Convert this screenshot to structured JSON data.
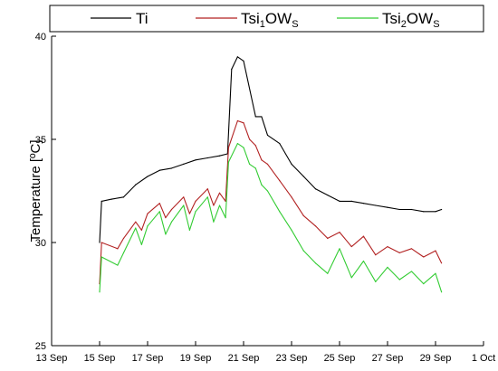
{
  "chart_data": {
    "type": "line",
    "title": "",
    "xlabel": "",
    "ylabel": "Temperature [ºC]",
    "x_unit": "date",
    "xlim": [
      "2021-09-13",
      "2021-10-01"
    ],
    "ylim": [
      25,
      40
    ],
    "x_ticks": [
      "13 Sep",
      "15 Sep",
      "17 Sep",
      "19 Sep",
      "21 Sep",
      "23 Sep",
      "25 Sep",
      "27 Sep",
      "29 Sep",
      "1 Oct"
    ],
    "y_ticks": [
      25,
      30,
      35,
      40
    ],
    "grid": false,
    "legend_position": "top",
    "legend": [
      {
        "main": "Ti",
        "sub1": "",
        "mid": "",
        "sub2": ""
      },
      {
        "main": "Tsi",
        "sub1": "1",
        "mid": "OW",
        "sub2": "S"
      },
      {
        "main": "Tsi",
        "sub1": "2",
        "mid": "OW",
        "sub2": "S"
      }
    ],
    "series": [
      {
        "name": "Ti",
        "color": "#000000",
        "x": [
          "2021-09-15 00:00",
          "2021-09-15 02:00",
          "2021-09-15 12:00",
          "2021-09-16 00:00",
          "2021-09-16 12:00",
          "2021-09-17 00:00",
          "2021-09-17 12:00",
          "2021-09-18 00:00",
          "2021-09-18 12:00",
          "2021-09-19 00:00",
          "2021-09-19 12:00",
          "2021-09-20 00:00",
          "2021-09-20 08:00",
          "2021-09-20 12:00",
          "2021-09-20 18:00",
          "2021-09-21 00:00",
          "2021-09-21 12:00",
          "2021-09-21 18:00",
          "2021-09-22 00:00",
          "2021-09-22 12:00",
          "2021-09-23 00:00",
          "2021-09-23 12:00",
          "2021-09-24 00:00",
          "2021-09-24 12:00",
          "2021-09-25 00:00",
          "2021-09-25 12:00",
          "2021-09-26 00:00",
          "2021-09-26 12:00",
          "2021-09-27 00:00",
          "2021-09-27 12:00",
          "2021-09-28 00:00",
          "2021-09-28 12:00",
          "2021-09-29 00:00",
          "2021-09-29 06:00"
        ],
        "y": [
          30.0,
          32.0,
          32.1,
          32.2,
          32.8,
          33.2,
          33.5,
          33.6,
          33.8,
          34.0,
          34.1,
          34.2,
          34.3,
          38.4,
          39.0,
          38.8,
          36.1,
          36.1,
          35.2,
          34.8,
          33.8,
          33.2,
          32.6,
          32.3,
          32.0,
          32.0,
          31.9,
          31.8,
          31.7,
          31.6,
          31.6,
          31.5,
          31.5,
          31.6
        ]
      },
      {
        "name": "Tsi1OWS",
        "color": "#b22222",
        "x": [
          "2021-09-15 00:00",
          "2021-09-15 02:00",
          "2021-09-15 18:00",
          "2021-09-16 00:00",
          "2021-09-16 12:00",
          "2021-09-16 18:00",
          "2021-09-17 00:00",
          "2021-09-17 12:00",
          "2021-09-17 18:00",
          "2021-09-18 00:00",
          "2021-09-18 12:00",
          "2021-09-18 18:00",
          "2021-09-19 00:00",
          "2021-09-19 12:00",
          "2021-09-19 18:00",
          "2021-09-20 00:00",
          "2021-09-20 06:00",
          "2021-09-20 09:00",
          "2021-09-20 18:00",
          "2021-09-21 00:00",
          "2021-09-21 06:00",
          "2021-09-21 12:00",
          "2021-09-21 18:00",
          "2021-09-22 00:00",
          "2021-09-22 12:00",
          "2021-09-23 00:00",
          "2021-09-23 12:00",
          "2021-09-24 00:00",
          "2021-09-24 12:00",
          "2021-09-25 00:00",
          "2021-09-25 12:00",
          "2021-09-26 00:00",
          "2021-09-26 12:00",
          "2021-09-27 00:00",
          "2021-09-27 12:00",
          "2021-09-28 00:00",
          "2021-09-28 12:00",
          "2021-09-29 00:00",
          "2021-09-29 06:00"
        ],
        "y": [
          28.0,
          30.0,
          29.7,
          30.2,
          31.0,
          30.6,
          31.4,
          31.9,
          31.2,
          31.6,
          32.2,
          31.4,
          32.0,
          32.6,
          31.8,
          32.4,
          32.0,
          34.6,
          35.9,
          35.8,
          35.0,
          34.7,
          34.0,
          33.8,
          33.0,
          32.2,
          31.3,
          30.8,
          30.2,
          30.5,
          29.8,
          30.3,
          29.4,
          29.8,
          29.5,
          29.7,
          29.3,
          29.6,
          29.0
        ]
      },
      {
        "name": "Tsi2OWS",
        "color": "#33cc33",
        "x": [
          "2021-09-15 00:00",
          "2021-09-15 02:00",
          "2021-09-15 18:00",
          "2021-09-16 00:00",
          "2021-09-16 12:00",
          "2021-09-16 18:00",
          "2021-09-17 00:00",
          "2021-09-17 12:00",
          "2021-09-17 18:00",
          "2021-09-18 00:00",
          "2021-09-18 12:00",
          "2021-09-18 18:00",
          "2021-09-19 00:00",
          "2021-09-19 12:00",
          "2021-09-19 18:00",
          "2021-09-20 00:00",
          "2021-09-20 06:00",
          "2021-09-20 09:00",
          "2021-09-20 18:00",
          "2021-09-21 00:00",
          "2021-09-21 06:00",
          "2021-09-21 12:00",
          "2021-09-21 18:00",
          "2021-09-22 00:00",
          "2021-09-22 12:00",
          "2021-09-23 00:00",
          "2021-09-23 12:00",
          "2021-09-24 00:00",
          "2021-09-24 12:00",
          "2021-09-25 00:00",
          "2021-09-25 12:00",
          "2021-09-26 00:00",
          "2021-09-26 12:00",
          "2021-09-27 00:00",
          "2021-09-27 12:00",
          "2021-09-28 00:00",
          "2021-09-28 12:00",
          "2021-09-29 00:00",
          "2021-09-29 06:00"
        ],
        "y": [
          27.6,
          29.3,
          28.9,
          29.5,
          30.7,
          29.9,
          30.8,
          31.5,
          30.4,
          31.0,
          31.8,
          30.6,
          31.5,
          32.2,
          31.0,
          31.8,
          31.2,
          33.9,
          34.8,
          34.6,
          33.8,
          33.6,
          32.8,
          32.5,
          31.5,
          30.6,
          29.6,
          29.0,
          28.5,
          29.7,
          28.3,
          29.1,
          28.1,
          28.8,
          28.2,
          28.6,
          28.0,
          28.5,
          27.6
        ]
      }
    ]
  }
}
